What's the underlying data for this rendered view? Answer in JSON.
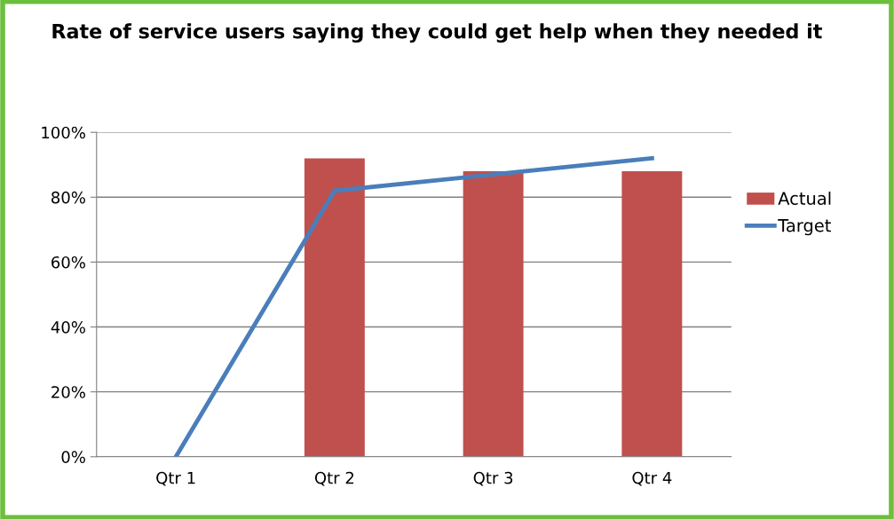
{
  "chart_data": {
    "type": "bar",
    "title": "Rate of service users saying they could get help when they needed it",
    "categories": [
      "Qtr 1",
      "Qtr 2",
      "Qtr 3",
      "Qtr 4"
    ],
    "series": [
      {
        "name": "Actual",
        "color": "#c0504d",
        "values": [
          null,
          0.92,
          0.88,
          0.88
        ]
      },
      {
        "name": "Target",
        "type": "line",
        "color": "#4a7ebb",
        "values": [
          0,
          0.82,
          0.87,
          0.92
        ]
      }
    ],
    "ylim": [
      0,
      1
    ],
    "yticks": [
      {
        "value": 0,
        "label": "0%"
      },
      {
        "value": 0.2,
        "label": "20%"
      },
      {
        "value": 0.4,
        "label": "40%"
      },
      {
        "value": 0.6,
        "label": "60%"
      },
      {
        "value": 0.8,
        "label": "80%"
      },
      {
        "value": 1,
        "label": "100%"
      }
    ],
    "grid": "y",
    "legend": "right",
    "marker": "none",
    "line_style": "solid"
  }
}
